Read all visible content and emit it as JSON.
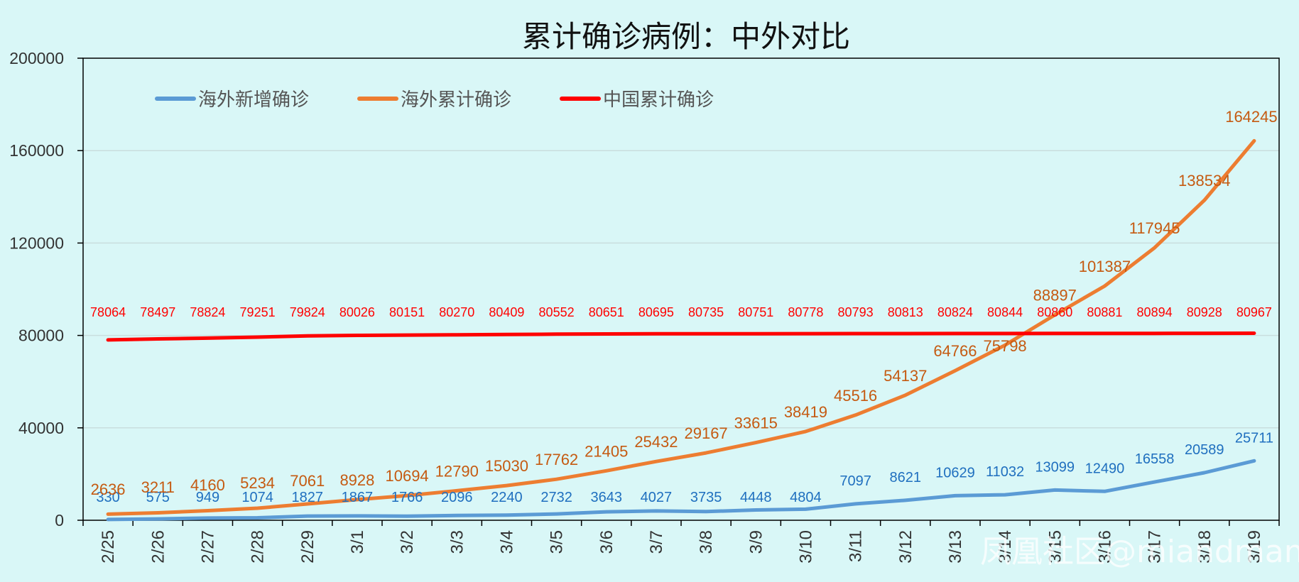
{
  "watermark": "凤凰社区@miandman",
  "chart_data": {
    "type": "line",
    "title": "累计确诊病例：中外对比",
    "ylim": [
      0,
      200000
    ],
    "yticks": [
      0,
      40000,
      80000,
      120000,
      160000,
      200000
    ],
    "grid": "horizontal",
    "legend_position": "top-left",
    "categories": [
      "2/25",
      "2/26",
      "2/27",
      "2/28",
      "2/29",
      "3/1",
      "3/2",
      "3/3",
      "3/4",
      "3/5",
      "3/6",
      "3/7",
      "3/8",
      "3/9",
      "3/10",
      "3/11",
      "3/12",
      "3/13",
      "3/14",
      "3/15",
      "3/16",
      "3/17",
      "3/18",
      "3/19"
    ],
    "series": [
      {
        "name": "海外新增确诊",
        "color": "#5b9bd5",
        "label_color": "#1f6fbf",
        "values": [
          330,
          575,
          949,
          1074,
          1827,
          1867,
          1766,
          2096,
          2240,
          2732,
          3643,
          4027,
          3735,
          4448,
          4804,
          7097,
          8621,
          10629,
          11032,
          13099,
          12490,
          16558,
          20589,
          25711
        ]
      },
      {
        "name": "海外累计确诊",
        "color": "#ed7d31",
        "label_color": "#c55a11",
        "values": [
          2636,
          3211,
          4160,
          5234,
          7061,
          8928,
          10694,
          12790,
          15030,
          17762,
          21405,
          25432,
          29167,
          33615,
          38419,
          45516,
          54137,
          64766,
          75798,
          88897,
          101387,
          117945,
          138534,
          164245
        ]
      },
      {
        "name": "中国累计确诊",
        "color": "#ff0000",
        "label_color": "#ff0000",
        "values": [
          78064,
          78497,
          78824,
          79251,
          79824,
          80026,
          80151,
          80270,
          80409,
          80552,
          80651,
          80695,
          80735,
          80751,
          80778,
          80793,
          80813,
          80824,
          80844,
          80860,
          80881,
          80894,
          80928,
          80967
        ]
      }
    ]
  }
}
